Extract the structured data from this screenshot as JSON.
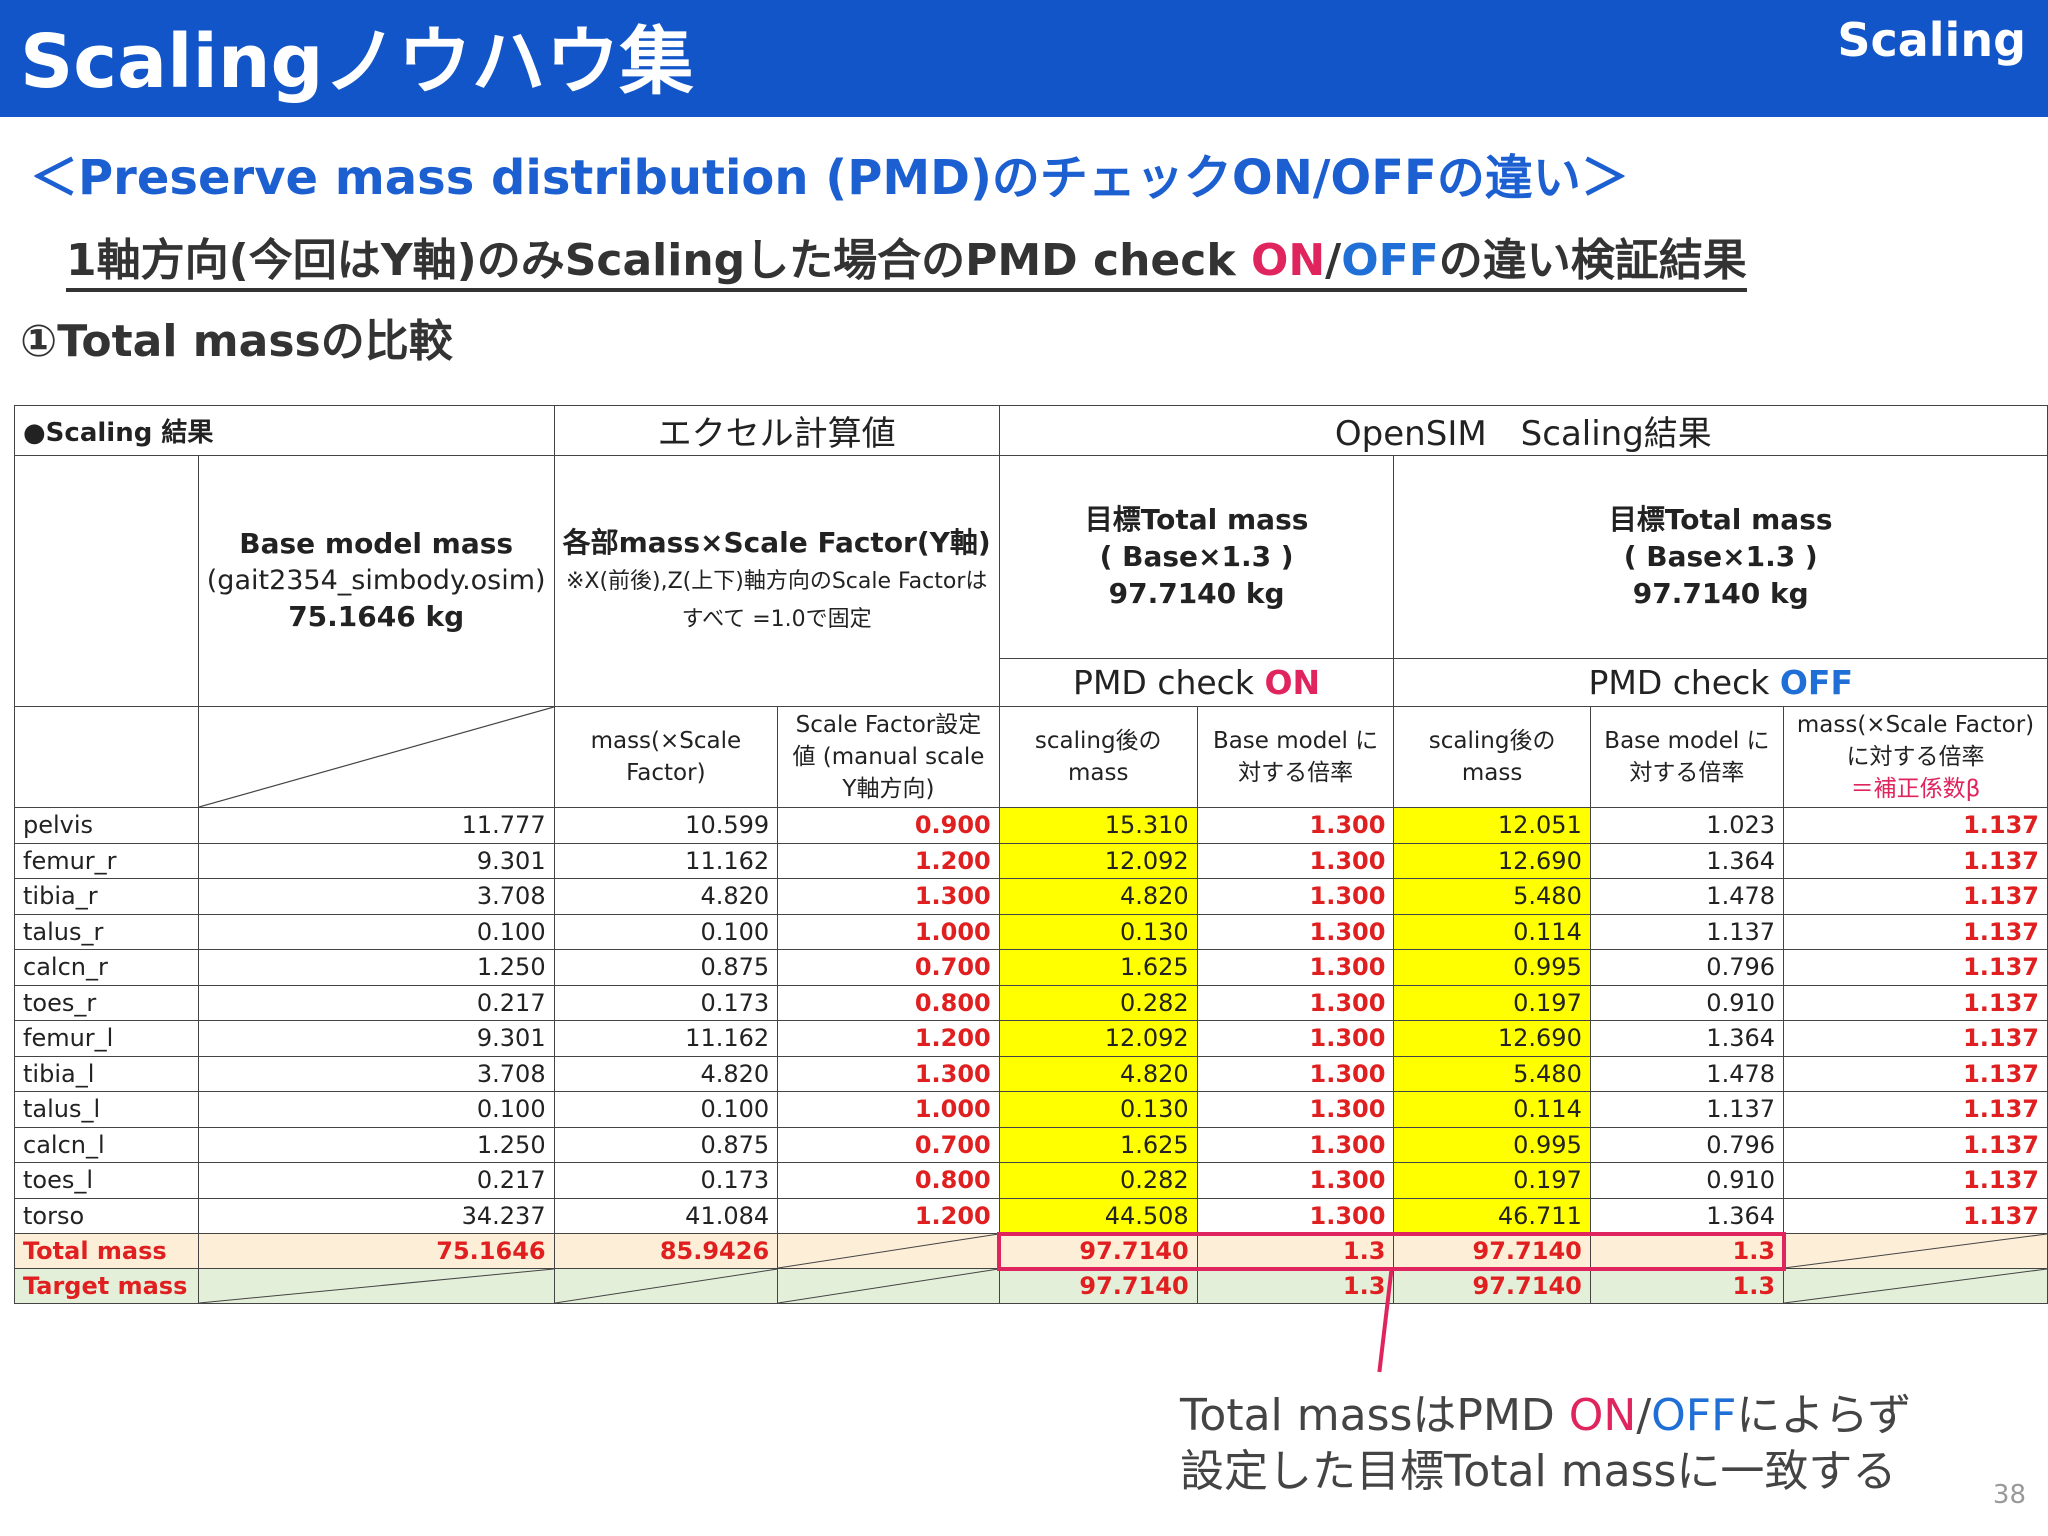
{
  "header": {
    "title": "Scalingノウハウ集",
    "section": "Scaling"
  },
  "subtitle": "＜Preserve mass distribution (PMD)のチェックON/OFFの違い＞",
  "headline": {
    "prefix": "1軸方向(今回はY軸)のみScalingした場合のPMD check ",
    "on": "ON",
    "slash": "/",
    "off": "OFF",
    "suffix": "の違い検証結果"
  },
  "subhead": "①Total massの比較",
  "table": {
    "scaling_label": "●Scaling 結果",
    "group_excel": "エクセル計算値",
    "group_opensim": "OpenSIM　Scaling結果",
    "base_title": "Base model mass",
    "base_file": "(gait2354_simbody.osim)",
    "base_value": "75.1646 kg",
    "excel_title": "各部mass×Scale Factor(Y軸)",
    "excel_note1": "※X(前後),Z(上下)軸方向のScale Factorは",
    "excel_note2": "すべて =1.0で固定",
    "target_title": "目標Total mass",
    "target_formula": "( Base×1.3 )",
    "target_value": "97.7140 kg",
    "pmd_prefix": "PMD check ",
    "pmd_on": "ON",
    "pmd_off": "OFF",
    "col_mass_scale": "mass(×Scale Factor)",
    "col_sf_setting": "Scale Factor設定値 (manual scale Y軸方向)",
    "col_scaled_mass": "scaling後の mass",
    "col_ratio": "Base model に対する倍率",
    "col_beta_1": "mass(×Scale Factor) に対する倍率",
    "col_beta_2": "＝補正係数β",
    "rows": [
      {
        "name": "pelvis",
        "base": "11.777",
        "mass_sf": "10.599",
        "sf": "0.900",
        "on_mass": "15.310",
        "on_ratio": "1.300",
        "off_mass": "12.051",
        "off_ratio": "1.023",
        "beta": "1.137"
      },
      {
        "name": "femur_r",
        "base": "9.301",
        "mass_sf": "11.162",
        "sf": "1.200",
        "on_mass": "12.092",
        "on_ratio": "1.300",
        "off_mass": "12.690",
        "off_ratio": "1.364",
        "beta": "1.137"
      },
      {
        "name": "tibia_r",
        "base": "3.708",
        "mass_sf": "4.820",
        "sf": "1.300",
        "on_mass": "4.820",
        "on_ratio": "1.300",
        "off_mass": "5.480",
        "off_ratio": "1.478",
        "beta": "1.137"
      },
      {
        "name": "talus_r",
        "base": "0.100",
        "mass_sf": "0.100",
        "sf": "1.000",
        "on_mass": "0.130",
        "on_ratio": "1.300",
        "off_mass": "0.114",
        "off_ratio": "1.137",
        "beta": "1.137"
      },
      {
        "name": "calcn_r",
        "base": "1.250",
        "mass_sf": "0.875",
        "sf": "0.700",
        "on_mass": "1.625",
        "on_ratio": "1.300",
        "off_mass": "0.995",
        "off_ratio": "0.796",
        "beta": "1.137"
      },
      {
        "name": "toes_r",
        "base": "0.217",
        "mass_sf": "0.173",
        "sf": "0.800",
        "on_mass": "0.282",
        "on_ratio": "1.300",
        "off_mass": "0.197",
        "off_ratio": "0.910",
        "beta": "1.137"
      },
      {
        "name": "femur_l",
        "base": "9.301",
        "mass_sf": "11.162",
        "sf": "1.200",
        "on_mass": "12.092",
        "on_ratio": "1.300",
        "off_mass": "12.690",
        "off_ratio": "1.364",
        "beta": "1.137"
      },
      {
        "name": "tibia_l",
        "base": "3.708",
        "mass_sf": "4.820",
        "sf": "1.300",
        "on_mass": "4.820",
        "on_ratio": "1.300",
        "off_mass": "5.480",
        "off_ratio": "1.478",
        "beta": "1.137"
      },
      {
        "name": "talus_l",
        "base": "0.100",
        "mass_sf": "0.100",
        "sf": "1.000",
        "on_mass": "0.130",
        "on_ratio": "1.300",
        "off_mass": "0.114",
        "off_ratio": "1.137",
        "beta": "1.137"
      },
      {
        "name": "calcn_l",
        "base": "1.250",
        "mass_sf": "0.875",
        "sf": "0.700",
        "on_mass": "1.625",
        "on_ratio": "1.300",
        "off_mass": "0.995",
        "off_ratio": "0.796",
        "beta": "1.137"
      },
      {
        "name": "toes_l",
        "base": "0.217",
        "mass_sf": "0.173",
        "sf": "0.800",
        "on_mass": "0.282",
        "on_ratio": "1.300",
        "off_mass": "0.197",
        "off_ratio": "0.910",
        "beta": "1.137"
      },
      {
        "name": "torso",
        "base": "34.237",
        "mass_sf": "41.084",
        "sf": "1.200",
        "on_mass": "44.508",
        "on_ratio": "1.300",
        "off_mass": "46.711",
        "off_ratio": "1.364",
        "beta": "1.137"
      }
    ],
    "total": {
      "label": "Total mass",
      "base": "75.1646",
      "mass_sf": "85.9426",
      "on_mass": "97.7140",
      "on_ratio": "1.3",
      "off_mass": "97.7140",
      "off_ratio": "1.3"
    },
    "target": {
      "label": "Target mass",
      "on_mass": "97.7140",
      "on_ratio": "1.3",
      "off_mass": "97.7140",
      "off_ratio": "1.3"
    }
  },
  "note": {
    "line1_prefix": "Total massはPMD ",
    "line1_on": "ON",
    "line1_slash": "/",
    "line1_off": "OFF",
    "line1_suffix": "によらず",
    "line2": "設定した目標Total massに一致する"
  },
  "page_number": "38"
}
